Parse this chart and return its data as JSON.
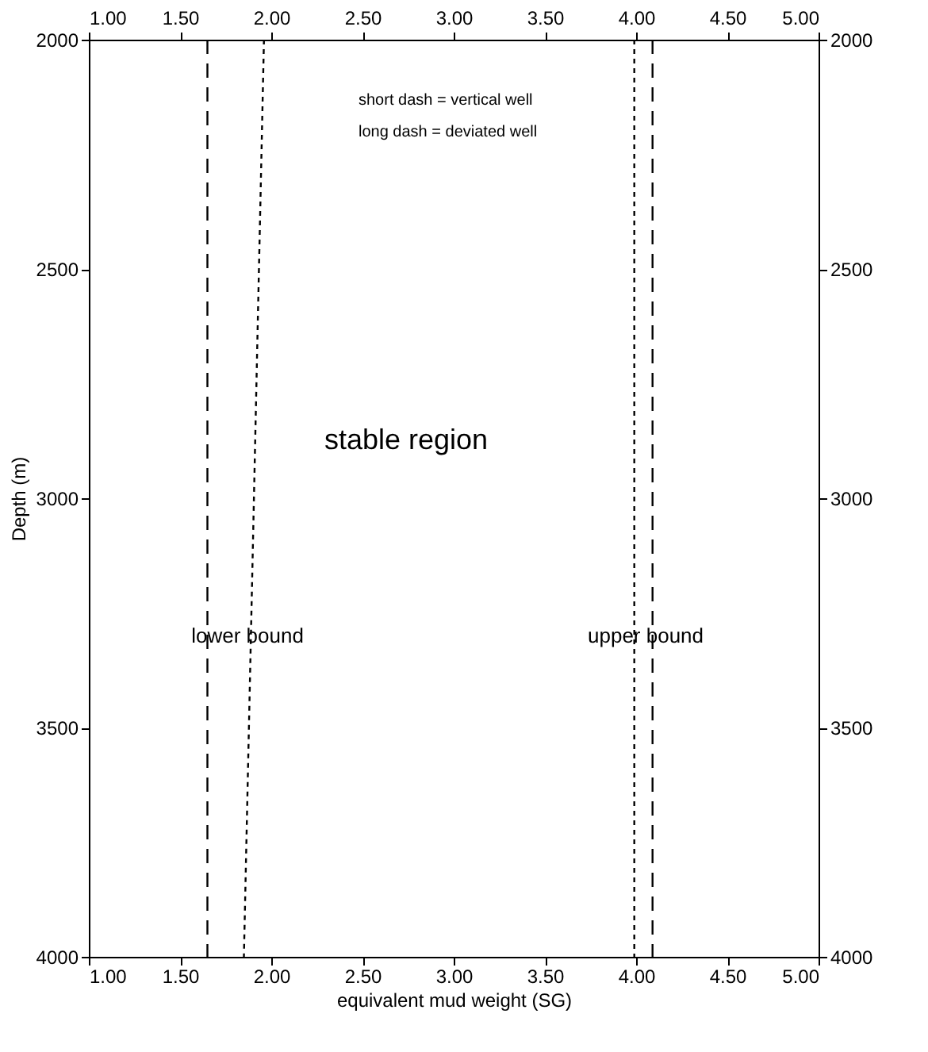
{
  "chart_data": {
    "type": "line",
    "xlabel": "equivalent mud weight (SG)",
    "ylabel": "Depth (m)",
    "xlim": [
      1.0,
      5.0
    ],
    "x2lim": [
      1.0,
      5.0
    ],
    "xticks": [
      {
        "value": 1,
        "label": "1.00"
      },
      {
        "value": 1.5,
        "label": "1.50"
      },
      {
        "value": 2,
        "label": "2.00"
      },
      {
        "value": 2.5,
        "label": "2.50"
      },
      {
        "value": 3,
        "label": "3.00"
      },
      {
        "value": 3.5,
        "label": "3.50"
      },
      {
        "value": 4,
        "label": "4.00"
      },
      {
        "value": 4.5,
        "label": "4.50"
      },
      {
        "value": 5,
        "label": "5.00"
      }
    ],
    "x2ticks": [
      {
        "value": 1,
        "label": "1.00"
      },
      {
        "value": 1.5,
        "label": "1.50"
      },
      {
        "value": 2,
        "label": "2.00"
      },
      {
        "value": 2.5,
        "label": "2.50"
      },
      {
        "value": 3,
        "label": "3.00"
      },
      {
        "value": 3.5,
        "label": "3.50"
      },
      {
        "value": 4,
        "label": "4.00"
      },
      {
        "value": 4.5,
        "label": "4.50"
      },
      {
        "value": 5,
        "label": "5.00"
      }
    ],
    "ylim": [
      4000,
      2000
    ],
    "yticks": [
      2000,
      2500,
      3000,
      3500,
      4000
    ],
    "y2lim": [
      4000,
      2000
    ],
    "y2ticks": [
      2000,
      2500,
      3000,
      3500,
      4000
    ],
    "grid": false,
    "marker": "none",
    "series": [
      {
        "color": "#000000",
        "line_style": "dashed",
        "x": [
          1.65,
          1.65
        ],
        "values": [
          2000,
          4000
        ]
      },
      {
        "color": "#000000",
        "line_style": "dotted",
        "x": [
          1.96,
          1.85
        ],
        "values": [
          2000,
          4000
        ]
      },
      {
        "color": "#000000",
        "line_style": "dotted",
        "x": [
          3.99,
          3.99
        ],
        "values": [
          2000,
          4000
        ]
      },
      {
        "color": "#000000",
        "line_style": "dashed",
        "x": [
          4.09,
          4.09
        ],
        "values": [
          2000,
          4000
        ]
      }
    ],
    "annotations": [
      "short dash = vertical well",
      "long dash  = deviated well",
      "stable region",
      "lower bound",
      "upper bound"
    ]
  }
}
